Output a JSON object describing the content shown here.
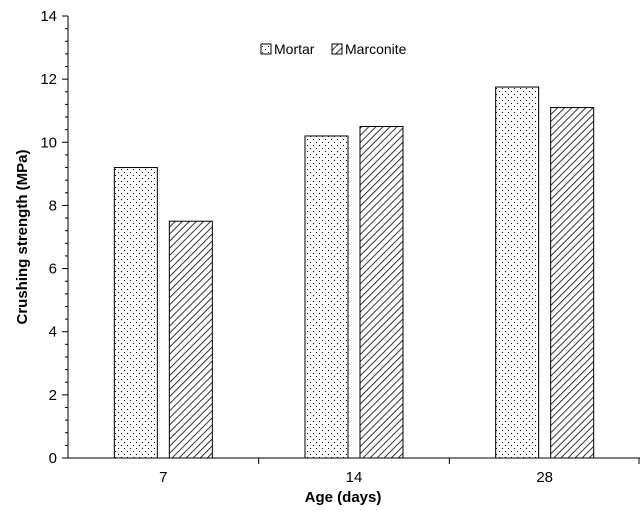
{
  "chart_data": {
    "type": "bar",
    "title": "",
    "xlabel": "Age (days)",
    "ylabel": "Crushing strength (MPa)",
    "categories": [
      "7",
      "14",
      "28"
    ],
    "ylim": [
      0,
      14
    ],
    "yticks": [
      0,
      2,
      4,
      6,
      8,
      10,
      12,
      14
    ],
    "grid": false,
    "legend_position": "top-center",
    "series": [
      {
        "name": "Mortar",
        "pattern": "dots",
        "values": [
          9.2,
          10.2,
          11.75
        ]
      },
      {
        "name": "Marconite",
        "pattern": "hatch",
        "values": [
          7.5,
          10.5,
          11.1
        ]
      }
    ]
  }
}
